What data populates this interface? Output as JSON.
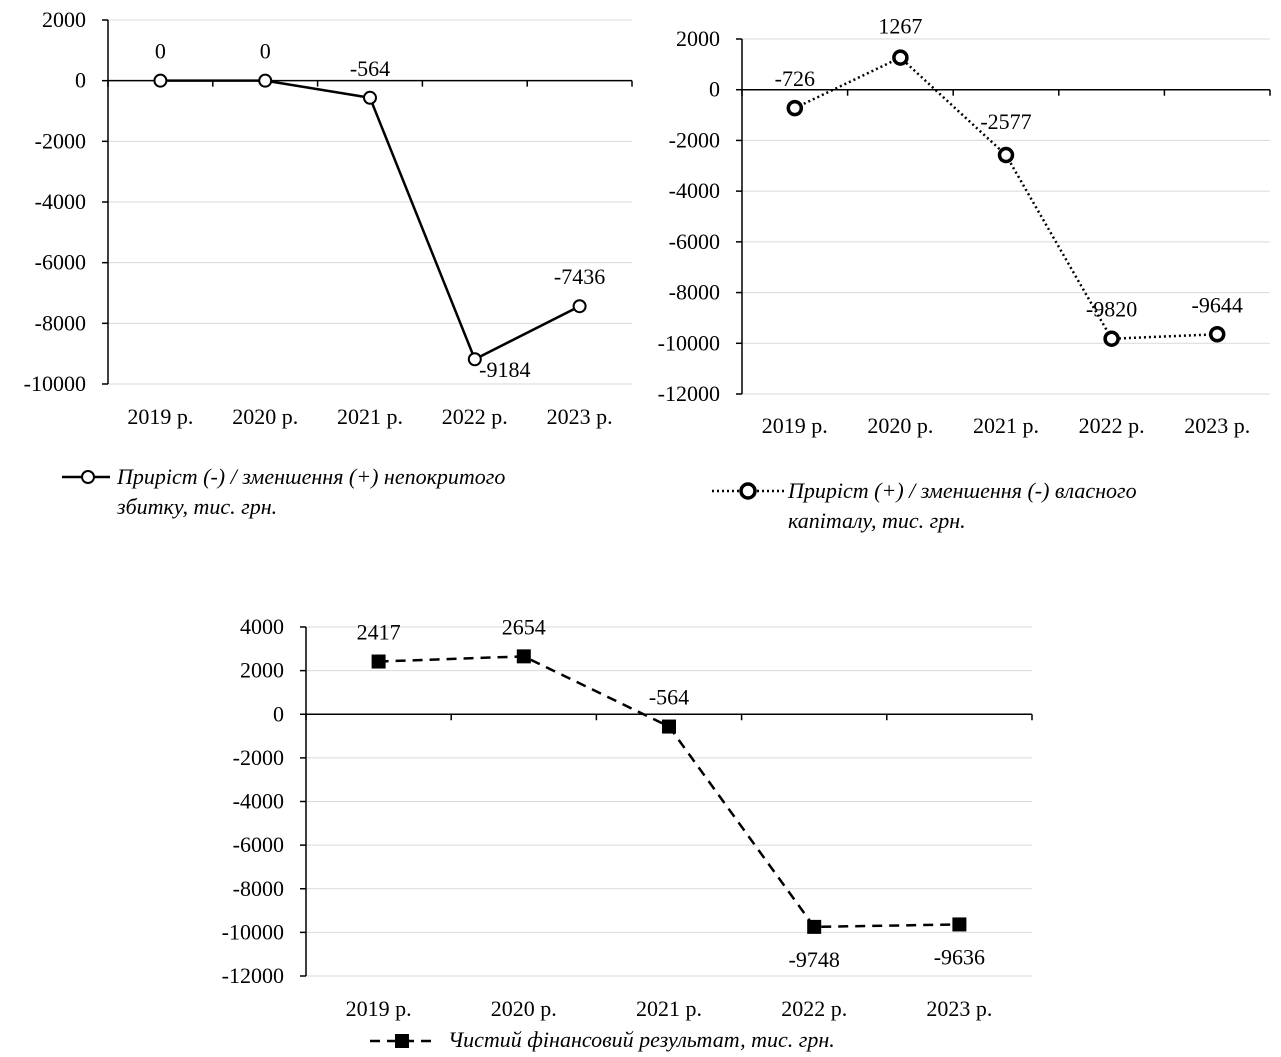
{
  "chart_data": [
    {
      "type": "line",
      "categories": [
        "2019 р.",
        "2020 р.",
        "2021 р.",
        "2022 р.",
        "2023 р."
      ],
      "ylim": [
        -10000,
        2000
      ],
      "yticks": [
        2000,
        0,
        -2000,
        -4000,
        -6000,
        -8000,
        -10000
      ],
      "series": [
        {
          "name": "Приріст (-) / зменшення (+) непокритого збитку, тис. грн.",
          "values": [
            0,
            0,
            -564,
            -9184,
            -7436
          ],
          "data_labels": [
            "0",
            "0",
            "-564",
            "-9184",
            "-7436"
          ],
          "line_style": "solid",
          "marker": "open-circle"
        }
      ],
      "grid": true,
      "legend_position": "bottom"
    },
    {
      "type": "line",
      "categories": [
        "2019 р.",
        "2020 р.",
        "2021 р.",
        "2022 р.",
        "2023 р."
      ],
      "ylim": [
        -12000,
        2000
      ],
      "yticks": [
        2000,
        0,
        -2000,
        -4000,
        -6000,
        -8000,
        -10000,
        -12000
      ],
      "series": [
        {
          "name": "Приріст (+) / зменшення (-) власного капіталу, тис. грн.",
          "values": [
            -726,
            1267,
            -2577,
            -9820,
            -9644
          ],
          "data_labels": [
            "-726",
            "1267",
            "-2577",
            "-9820",
            "-9644"
          ],
          "line_style": "dotted",
          "marker": "open-circle-bold"
        }
      ],
      "grid": true,
      "legend_position": "bottom"
    },
    {
      "type": "line",
      "categories": [
        "2019 р.",
        "2020 р.",
        "2021 р.",
        "2022 р.",
        "2023 р."
      ],
      "ylim": [
        -12000,
        4000
      ],
      "yticks": [
        4000,
        2000,
        0,
        -2000,
        -4000,
        -6000,
        -8000,
        -10000,
        -12000
      ],
      "series": [
        {
          "name": "Чистий фінансовий результат, тис. грн.",
          "values": [
            2417,
            2654,
            -564,
            -9748,
            -9636
          ],
          "data_labels": [
            "2417",
            "2654",
            "-564",
            "-9748",
            "-9636"
          ],
          "line_style": "dashed",
          "marker": "filled-square"
        }
      ],
      "grid": true,
      "legend_position": "bottom"
    }
  ],
  "legends": [
    {
      "line1": "Приріст (-) / зменшення (+) непокритого",
      "line2": "збитку, тис. грн."
    },
    {
      "line1": "Приріст (+) / зменшення (-) власного",
      "line2": "капіталу, тис. грн."
    },
    {
      "line1": "Чистий фінансовий результат, тис. грн.",
      "line2": ""
    }
  ],
  "colors": {
    "line": "#000000",
    "grid": "#d9d9d9",
    "axis": "#000000"
  }
}
